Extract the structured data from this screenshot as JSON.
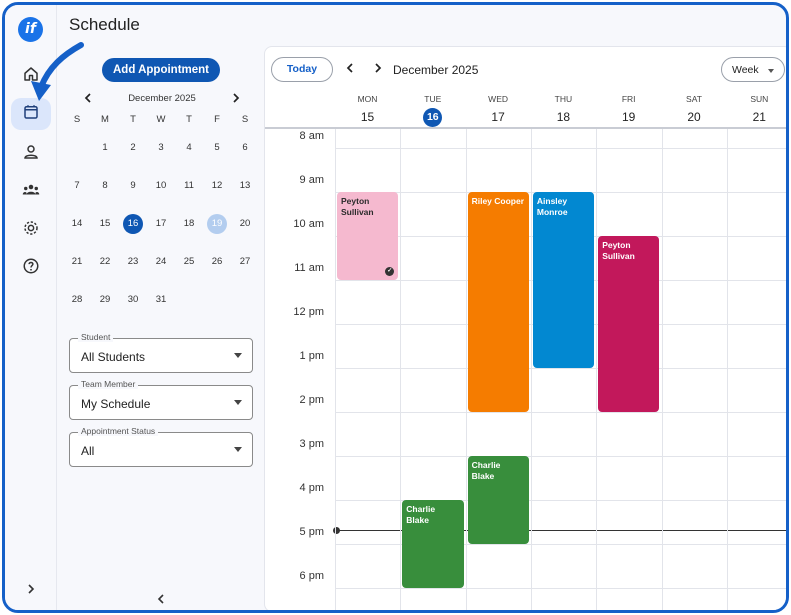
{
  "app": {
    "logo_text": "if",
    "page_title": "Schedule"
  },
  "rail": {
    "items": [
      {
        "icon": "home-icon"
      },
      {
        "icon": "calendar-icon",
        "active": true
      },
      {
        "icon": "person-icon"
      },
      {
        "icon": "group-icon"
      },
      {
        "icon": "gear-icon"
      },
      {
        "icon": "help-icon"
      }
    ],
    "expand_icon": "chevron-right-icon"
  },
  "sidebar": {
    "add_button": "Add Appointment",
    "mini_calendar": {
      "title": "December 2025",
      "weekdays": [
        "S",
        "M",
        "T",
        "W",
        "T",
        "F",
        "S"
      ],
      "weeks": [
        [
          "",
          "1",
          "2",
          "3",
          "4",
          "5",
          "6"
        ],
        [
          "7",
          "8",
          "9",
          "10",
          "11",
          "12",
          "13"
        ],
        [
          "14",
          "15",
          "16",
          "17",
          "18",
          "19",
          "20"
        ],
        [
          "21",
          "22",
          "23",
          "24",
          "25",
          "26",
          "27"
        ],
        [
          "28",
          "29",
          "30",
          "31",
          "",
          "",
          ""
        ]
      ],
      "today": "16",
      "selected": "19"
    },
    "filters": [
      {
        "label": "Student",
        "value": "All Students"
      },
      {
        "label": "Team Member",
        "value": "My Schedule"
      },
      {
        "label": "Appointment Status",
        "value": "All"
      }
    ]
  },
  "calendar": {
    "today_label": "Today",
    "month_label": "December 2025",
    "view": "Week",
    "days": [
      {
        "dow": "MON",
        "dom": "15"
      },
      {
        "dow": "TUE",
        "dom": "16",
        "today": true
      },
      {
        "dow": "WED",
        "dom": "17"
      },
      {
        "dow": "THU",
        "dom": "18"
      },
      {
        "dow": "FRI",
        "dom": "19"
      },
      {
        "dow": "SAT",
        "dom": "20"
      },
      {
        "dow": "SUN",
        "dom": "21"
      }
    ],
    "hours": [
      "8 am",
      "9 am",
      "10 am",
      "11 am",
      "12 pm",
      "1 pm",
      "2 pm",
      "3 pm",
      "4 pm",
      "5 pm",
      "6 pm"
    ],
    "events": [
      {
        "title": "Peyton Sullivan",
        "day": 0,
        "start": 9.0,
        "end": 11.0,
        "color": "#f5b9cf",
        "light": true,
        "completed": true
      },
      {
        "title": "Riley Cooper",
        "day": 2,
        "start": 9.0,
        "end": 14.0,
        "color": "#f57c00"
      },
      {
        "title": "Ainsley Monroe",
        "day": 3,
        "start": 9.0,
        "end": 13.0,
        "color": "#0288d1"
      },
      {
        "title": "Peyton Sullivan",
        "day": 4,
        "start": 10.0,
        "end": 14.0,
        "color": "#c2185b"
      },
      {
        "title": "Charlie Blake",
        "day": 2,
        "start": 15.0,
        "end": 17.0,
        "color": "#388e3c"
      },
      {
        "title": "Charlie Blake",
        "day": 1,
        "start": 16.0,
        "end": 18.0,
        "color": "#388e3c"
      }
    ],
    "now_time": 16.68
  }
}
